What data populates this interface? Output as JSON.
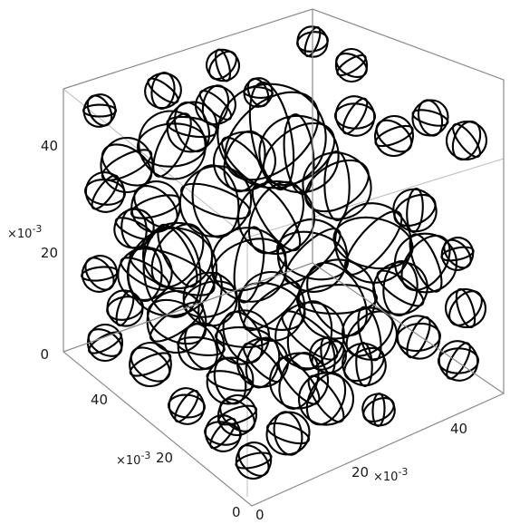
{
  "figure": {
    "z_ticks": [
      "0",
      "20",
      "40"
    ],
    "z_exponent": "×10",
    "z_exponent_power": "-3",
    "y_ticks": [
      "0",
      "20",
      "40"
    ],
    "y_exponent": "×10",
    "y_exponent_power": "-3",
    "x_ticks": [
      "0",
      "20",
      "40"
    ],
    "x_exponent": "×10",
    "x_exponent_power": "-3",
    "colors": {
      "spheres": "#000000",
      "box_back": "#bdbdbd",
      "box_front": "#8c8c8c",
      "background": "#ffffff"
    }
  }
}
